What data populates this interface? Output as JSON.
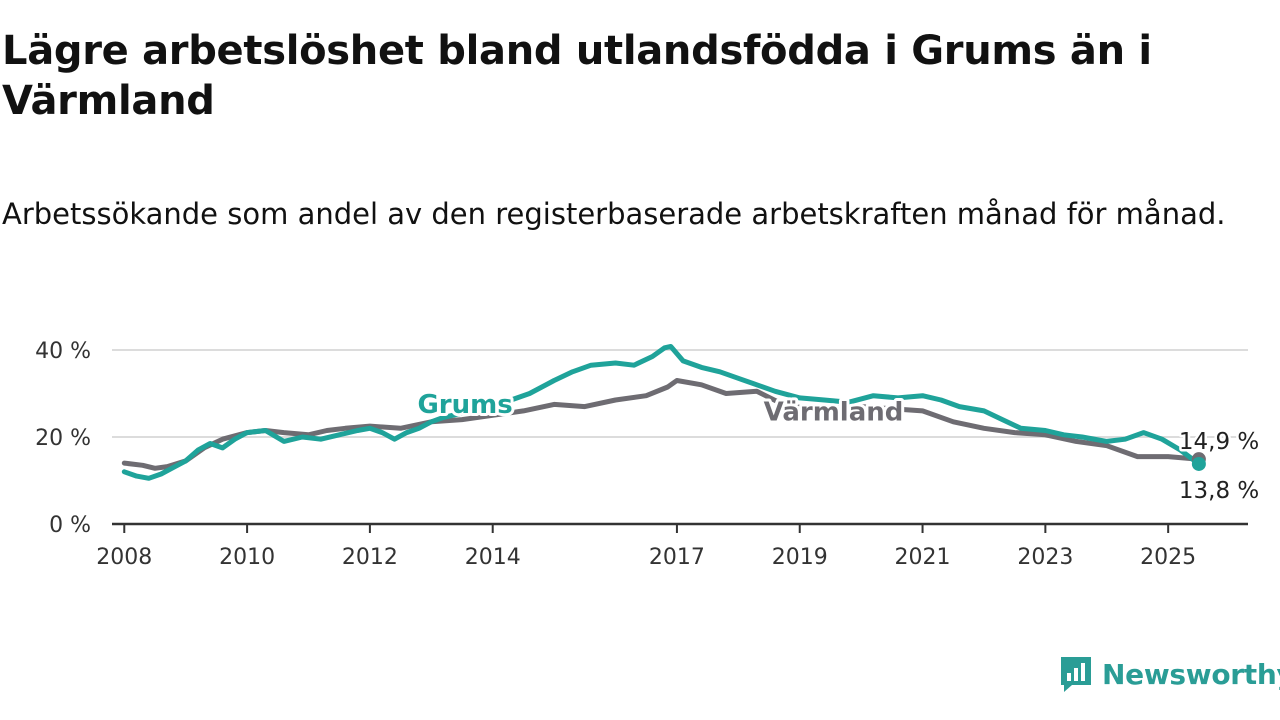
{
  "header": {
    "title": "Lägre arbetslöshet bland utlandsfödda i Grums än i Värmland",
    "subtitle": "Arbetssökande som andel av den registerbaserade arbetskraften månad för månad."
  },
  "brand": {
    "name": "Newsworthy",
    "icon": "newsworthy-logo-icon",
    "color": "#2a9d96"
  },
  "chart_data": {
    "type": "line",
    "title": "Lägre arbetslöshet bland utlandsfödda i Grums än i Värmland",
    "subtitle": "Arbetssökande som andel av den registerbaserade arbetskraften månad för månad.",
    "x_unit": "year",
    "xlim": [
      2007.8,
      2026.3
    ],
    "ylim": [
      0,
      40
    ],
    "yticks": [
      0,
      20,
      40
    ],
    "ytick_labels": [
      "0 %",
      "20 %",
      "40 %"
    ],
    "xticks": [
      2008,
      2010,
      2012,
      2014,
      2017,
      2019,
      2021,
      2023,
      2025
    ],
    "xtick_labels": [
      "2008",
      "2010",
      "2012",
      "2014",
      "2017",
      "2019",
      "2021",
      "2023",
      "2025"
    ],
    "grid": true,
    "series": [
      {
        "name": "Värmland",
        "color": "#6e6c72",
        "x": [
          2008.0,
          2008.3,
          2008.5,
          2008.7,
          2009.0,
          2009.3,
          2009.6,
          2010.0,
          2010.3,
          2010.6,
          2011.0,
          2011.3,
          2011.6,
          2012.0,
          2012.5,
          2013.0,
          2013.5,
          2014.0,
          2014.5,
          2015.0,
          2015.5,
          2016.0,
          2016.5,
          2016.85,
          2017.0,
          2017.4,
          2017.8,
          2018.3,
          2018.8,
          2019.5,
          2020.0,
          2020.5,
          2021.0,
          2021.5,
          2022.0,
          2022.5,
          2023.0,
          2023.5,
          2024.0,
          2024.5,
          2025.0,
          2025.5
        ],
        "values": [
          14.0,
          13.5,
          12.8,
          13.2,
          14.5,
          17.5,
          19.5,
          21.0,
          21.5,
          21.0,
          20.5,
          21.5,
          22.0,
          22.5,
          22.0,
          23.5,
          24.0,
          25.0,
          26.0,
          27.5,
          27.0,
          28.5,
          29.5,
          31.5,
          33.0,
          32.0,
          30.0,
          30.5,
          27.0,
          26.5,
          27.0,
          26.5,
          26.0,
          23.5,
          22.0,
          21.0,
          20.5,
          19.0,
          18.0,
          15.5,
          15.5,
          14.9
        ]
      },
      {
        "name": "Grums",
        "color": "#1fa39a",
        "x": [
          2008.0,
          2008.2,
          2008.4,
          2008.6,
          2008.8,
          2009.0,
          2009.2,
          2009.4,
          2009.6,
          2009.8,
          2010.0,
          2010.3,
          2010.6,
          2010.9,
          2011.2,
          2011.5,
          2011.8,
          2012.0,
          2012.2,
          2012.4,
          2012.6,
          2012.8,
          2013.0,
          2013.2,
          2013.5,
          2013.8,
          2014.0,
          2014.3,
          2014.6,
          2015.0,
          2015.3,
          2015.6,
          2016.0,
          2016.3,
          2016.6,
          2016.8,
          2016.9,
          2017.1,
          2017.4,
          2017.7,
          2018.0,
          2018.3,
          2018.6,
          2019.0,
          2019.4,
          2019.8,
          2020.2,
          2020.6,
          2021.0,
          2021.3,
          2021.6,
          2022.0,
          2022.3,
          2022.6,
          2023.0,
          2023.3,
          2023.6,
          2024.0,
          2024.3,
          2024.6,
          2024.9,
          2025.2,
          2025.5
        ],
        "values": [
          12.0,
          11.0,
          10.5,
          11.5,
          13.0,
          14.5,
          17.0,
          18.5,
          17.5,
          19.5,
          21.0,
          21.5,
          19.0,
          20.0,
          19.5,
          20.5,
          21.5,
          22.0,
          21.0,
          19.5,
          21.0,
          22.0,
          23.5,
          24.5,
          25.5,
          26.0,
          27.0,
          28.5,
          30.0,
          33.0,
          35.0,
          36.5,
          37.0,
          36.5,
          38.5,
          40.5,
          40.8,
          37.5,
          36.0,
          35.0,
          33.5,
          32.0,
          30.5,
          29.0,
          28.5,
          28.0,
          29.5,
          29.0,
          29.5,
          28.5,
          27.0,
          26.0,
          24.0,
          22.0,
          21.5,
          20.5,
          20.0,
          19.0,
          19.5,
          21.0,
          19.5,
          17.0,
          13.8
        ]
      }
    ],
    "series_labels": [
      {
        "series": "Grums",
        "text": "Grums"
      },
      {
        "series": "Värmland",
        "text": "Värmland"
      }
    ],
    "end_labels": [
      {
        "series": "Värmland",
        "value": 14.9,
        "text": "14,9 %"
      },
      {
        "series": "Grums",
        "value": 13.8,
        "text": "13,8 %"
      }
    ]
  }
}
